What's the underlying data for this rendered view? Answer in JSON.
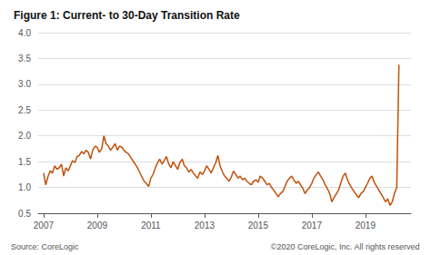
{
  "chart_data": {
    "type": "line",
    "title": "Figure 1: Current- to 30-Day Transition Rate",
    "color": "#C0510A",
    "xlim": [
      2006.8,
      2020.7
    ],
    "xticks": [
      2007,
      2009,
      2011,
      2013,
      2015,
      2017,
      2019
    ],
    "ylim": [
      0.5,
      4.0
    ],
    "yticks": [
      0.5,
      {
        "value": 1.0,
        "label": "1.0"
      },
      1.5,
      {
        "value": 2.0,
        "label": "2.0"
      },
      2.5,
      {
        "value": 3.0,
        "label": "3.0"
      },
      3.5,
      {
        "value": 4.0,
        "label": "4.0"
      }
    ],
    "grid": true,
    "annotations": [
      "Source: CoreLogic",
      "©2020 CoreLogic, Inc. All rights reserved"
    ],
    "x": [
      2007.0,
      2007.08,
      2007.17,
      2007.25,
      2007.33,
      2007.42,
      2007.5,
      2007.58,
      2007.67,
      2007.75,
      2007.83,
      2007.92,
      2008.0,
      2008.08,
      2008.17,
      2008.25,
      2008.33,
      2008.42,
      2008.5,
      2008.58,
      2008.67,
      2008.75,
      2008.83,
      2008.92,
      2009.0,
      2009.08,
      2009.17,
      2009.25,
      2009.33,
      2009.42,
      2009.5,
      2009.58,
      2009.67,
      2009.75,
      2009.83,
      2009.92,
      2010.0,
      2010.08,
      2010.17,
      2010.25,
      2010.33,
      2010.42,
      2010.5,
      2010.58,
      2010.67,
      2010.75,
      2010.83,
      2010.92,
      2011.0,
      2011.08,
      2011.17,
      2011.25,
      2011.33,
      2011.42,
      2011.5,
      2011.58,
      2011.67,
      2011.75,
      2011.83,
      2011.92,
      2012.0,
      2012.08,
      2012.17,
      2012.25,
      2012.33,
      2012.42,
      2012.5,
      2012.58,
      2012.67,
      2012.75,
      2012.83,
      2012.92,
      2013.0,
      2013.08,
      2013.17,
      2013.25,
      2013.33,
      2013.42,
      2013.5,
      2013.58,
      2013.67,
      2013.75,
      2013.83,
      2013.92,
      2014.0,
      2014.08,
      2014.17,
      2014.25,
      2014.33,
      2014.42,
      2014.5,
      2014.58,
      2014.67,
      2014.75,
      2014.83,
      2014.92,
      2015.0,
      2015.08,
      2015.17,
      2015.25,
      2015.33,
      2015.42,
      2015.5,
      2015.58,
      2015.67,
      2015.75,
      2015.83,
      2015.92,
      2016.0,
      2016.08,
      2016.17,
      2016.25,
      2016.33,
      2016.42,
      2016.5,
      2016.58,
      2016.67,
      2016.75,
      2016.83,
      2016.92,
      2017.0,
      2017.08,
      2017.17,
      2017.25,
      2017.33,
      2017.42,
      2017.5,
      2017.58,
      2017.67,
      2017.75,
      2017.83,
      2017.92,
      2018.0,
      2018.08,
      2018.17,
      2018.25,
      2018.33,
      2018.42,
      2018.5,
      2018.58,
      2018.67,
      2018.75,
      2018.83,
      2018.92,
      2019.0,
      2019.08,
      2019.17,
      2019.25,
      2019.33,
      2019.42,
      2019.5,
      2019.58,
      2019.67,
      2019.75,
      2019.83,
      2019.92,
      2020.0,
      2020.08,
      2020.17,
      2020.25
    ],
    "values": [
      1.28,
      1.05,
      1.22,
      1.32,
      1.28,
      1.42,
      1.35,
      1.38,
      1.45,
      1.22,
      1.38,
      1.32,
      1.42,
      1.52,
      1.48,
      1.6,
      1.62,
      1.7,
      1.65,
      1.72,
      1.68,
      1.55,
      1.72,
      1.8,
      1.78,
      1.68,
      1.75,
      2.0,
      1.85,
      1.8,
      1.72,
      1.78,
      1.85,
      1.72,
      1.8,
      1.78,
      1.72,
      1.68,
      1.65,
      1.58,
      1.52,
      1.45,
      1.38,
      1.3,
      1.2,
      1.12,
      1.08,
      1.02,
      1.18,
      1.25,
      1.38,
      1.48,
      1.55,
      1.45,
      1.52,
      1.6,
      1.45,
      1.38,
      1.5,
      1.42,
      1.35,
      1.48,
      1.55,
      1.42,
      1.38,
      1.3,
      1.35,
      1.28,
      1.22,
      1.18,
      1.3,
      1.25,
      1.32,
      1.42,
      1.35,
      1.28,
      1.38,
      1.48,
      1.62,
      1.42,
      1.3,
      1.22,
      1.18,
      1.12,
      1.2,
      1.32,
      1.25,
      1.18,
      1.22,
      1.15,
      1.18,
      1.12,
      1.08,
      1.05,
      1.12,
      1.15,
      1.1,
      1.22,
      1.18,
      1.12,
      1.05,
      1.08,
      1.0,
      0.95,
      0.88,
      0.82,
      0.88,
      0.92,
      1.02,
      1.12,
      1.18,
      1.22,
      1.15,
      1.08,
      1.12,
      1.05,
      0.98,
      0.88,
      0.95,
      1.0,
      1.08,
      1.18,
      1.25,
      1.3,
      1.22,
      1.15,
      1.05,
      0.98,
      0.88,
      0.72,
      0.8,
      0.88,
      0.95,
      1.08,
      1.22,
      1.28,
      1.15,
      1.05,
      0.98,
      0.92,
      0.85,
      0.8,
      0.88,
      0.92,
      1.0,
      1.08,
      1.18,
      1.22,
      1.1,
      1.02,
      0.95,
      0.88,
      0.8,
      0.72,
      0.78,
      0.65,
      0.72,
      0.88,
      1.0,
      3.38
    ]
  }
}
